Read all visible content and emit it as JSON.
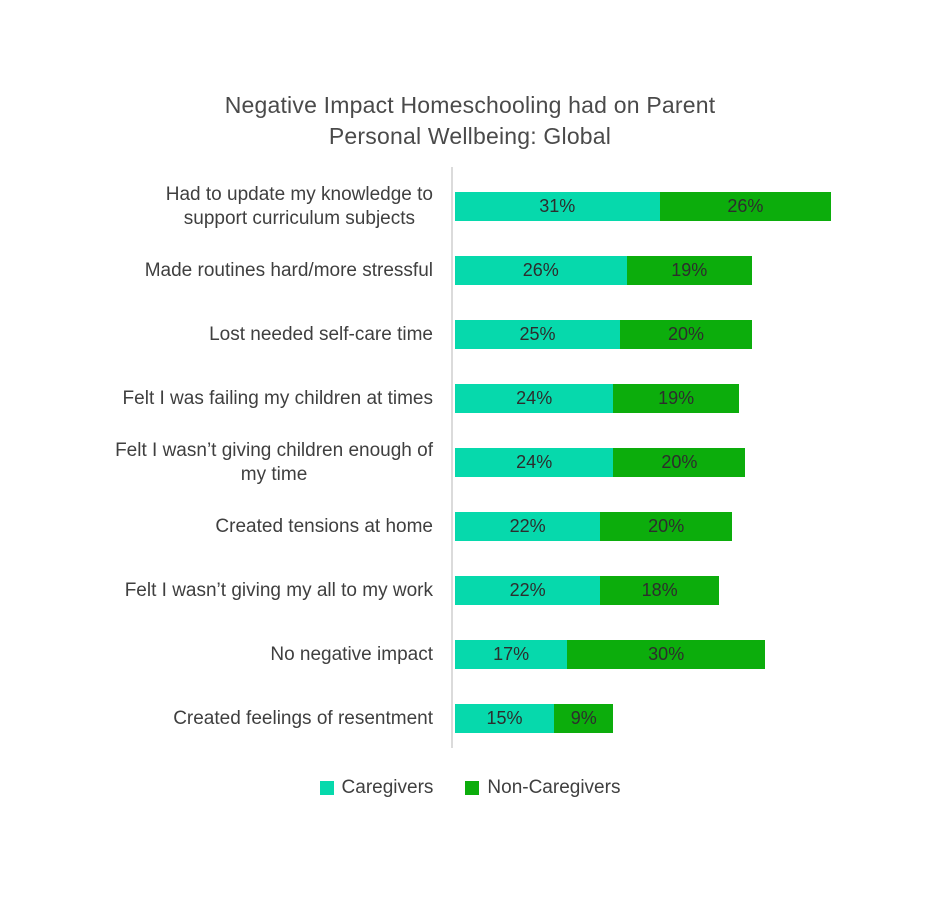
{
  "title": {
    "line1": "Negative Impact Homeschooling had on Parent",
    "line2": "Personal Wellbeing: Global"
  },
  "colors": {
    "caregivers": "#06D9AC",
    "non_caregivers": "#0CAD0C",
    "axis_line": "#DBDBDB",
    "title_text": "#4A4A4A",
    "category_label_text": "#3F3F3F",
    "value_label_text": "#2D2D2D",
    "background": "#FFFFFF"
  },
  "legend": {
    "items": [
      {
        "label": "Caregivers",
        "color": "#06D9AC"
      },
      {
        "label": "Non-Caregivers",
        "color": "#0CAD0C"
      }
    ]
  },
  "chart_data": {
    "type": "bar",
    "orientation": "horizontal",
    "stacked": true,
    "title": "Negative Impact Homeschooling had on Parent Personal Wellbeing: Global",
    "categories": [
      "Had to update my knowledge to\nsupport curriculum subjects",
      "Made routines hard/more stressful",
      "Lost needed self-care time",
      "Felt I was failing my children at times",
      "Felt I wasn’t giving children enough of\nmy time",
      "Created tensions at home",
      "Felt I wasn’t giving my all to my work",
      "No negative impact",
      "Created feelings of resentment"
    ],
    "series": [
      {
        "name": "Caregivers",
        "color": "#06D9AC",
        "values": [
          31,
          26,
          25,
          24,
          24,
          22,
          22,
          17,
          15
        ]
      },
      {
        "name": "Non-Caregivers",
        "color": "#0CAD0C",
        "values": [
          26,
          19,
          20,
          19,
          20,
          20,
          18,
          30,
          9
        ]
      }
    ],
    "value_suffix": "%",
    "data_labels": "inside-center",
    "xlabel": "",
    "ylabel": "",
    "xlim": [
      0,
      60
    ],
    "x_axis_visible": false,
    "grid": false,
    "legend_position": "bottom"
  }
}
